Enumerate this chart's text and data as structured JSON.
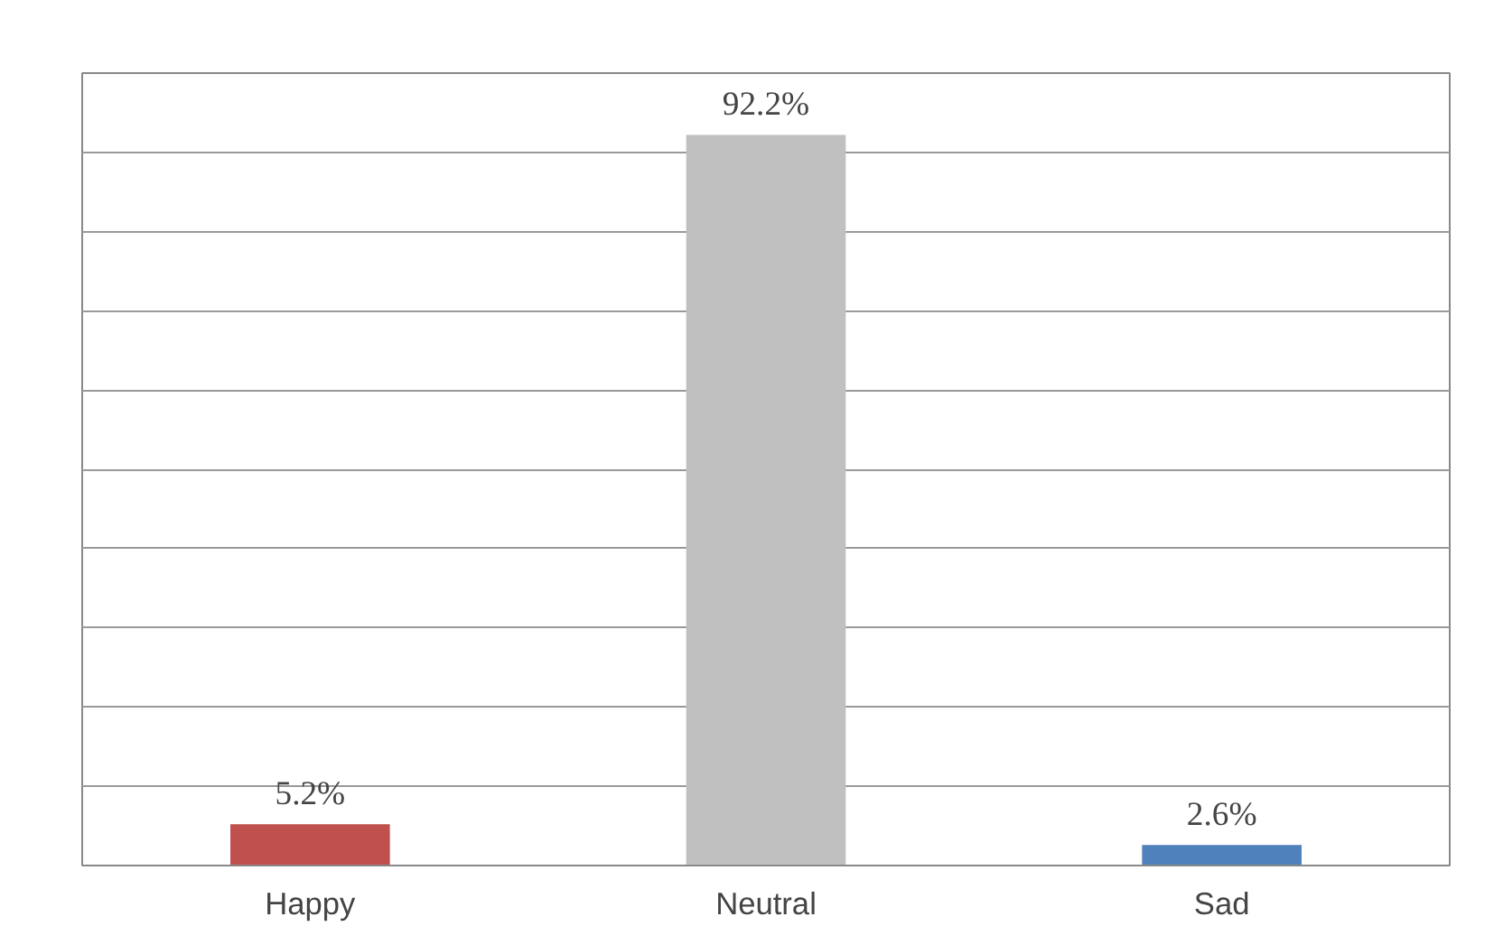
{
  "chart_data": {
    "type": "bar",
    "categories": [
      "Happy",
      "Neutral",
      "Sad"
    ],
    "values": [
      5.2,
      92.2,
      2.6
    ],
    "colors": [
      "#c0504d",
      "#c0c0c0",
      "#4f81bd"
    ],
    "value_labels": [
      "5.2%",
      "92.2%",
      "2.6%"
    ],
    "ylim": [
      0,
      100
    ],
    "yticks": [
      {
        "value": 0,
        "label": null
      },
      {
        "value": 10,
        "label": null
      },
      {
        "value": 20,
        "label": null
      },
      {
        "value": 30,
        "label": null
      },
      {
        "value": 40,
        "label": null
      },
      {
        "value": 50,
        "label": null
      },
      {
        "value": 60,
        "label": null
      },
      {
        "value": 70,
        "label": null
      },
      {
        "value": 80,
        "label": null
      },
      {
        "value": 90,
        "label": null
      },
      {
        "value": 100,
        "label": null
      }
    ],
    "grid": "y",
    "tick_labels": "x"
  }
}
